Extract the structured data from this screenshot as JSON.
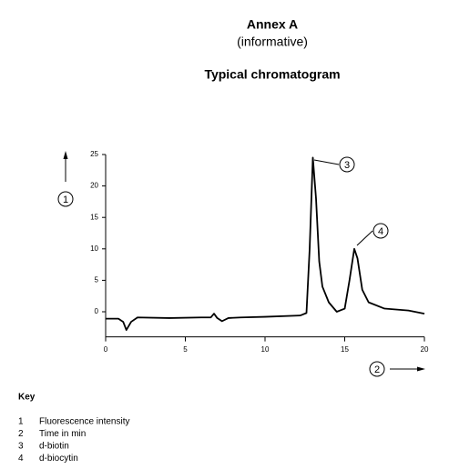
{
  "header": {
    "title": "Annex A",
    "subtitle": "(informative)",
    "caption": "Typical chromatogram"
  },
  "chart_data": {
    "type": "line",
    "x": [
      0,
      0.8,
      1.1,
      1.3,
      1.6,
      2,
      4,
      6,
      6.6,
      6.8,
      7.0,
      7.3,
      7.7,
      8.5,
      10,
      12.2,
      12.6,
      12.8,
      13.0,
      13.2,
      13.4,
      13.6,
      14.0,
      14.5,
      15.0,
      15.3,
      15.6,
      15.8,
      16.1,
      16.5,
      17.5,
      19,
      20
    ],
    "series": [
      {
        "color": "#000000",
        "values": [
          -1.1,
          -1.1,
          -1.6,
          -2.9,
          -1.6,
          -0.9,
          -1.0,
          -0.9,
          -0.9,
          -0.3,
          -1.0,
          -1.5,
          -1.0,
          -0.9,
          -0.8,
          -0.6,
          -0.2,
          10,
          24.5,
          18,
          8,
          4,
          1.5,
          0.0,
          0.5,
          5,
          10,
          8.5,
          3.5,
          1.5,
          0.5,
          0.2,
          -0.3
        ]
      }
    ],
    "xlim": [
      0,
      20
    ],
    "ylim": [
      -4,
      25
    ],
    "xticks": [
      0,
      5,
      10,
      15,
      20
    ],
    "yticks": [
      0,
      5,
      10,
      15,
      20,
      25
    ],
    "y_axis_marker": "1",
    "x_axis_marker": "2",
    "callouts": [
      "3",
      "4"
    ]
  },
  "key": {
    "title": "Key",
    "items": [
      {
        "number": "1",
        "text": "Fluorescence intensity"
      },
      {
        "number": "2",
        "text": "Time in min"
      },
      {
        "number": "3",
        "text": "d-biotin"
      },
      {
        "number": "4",
        "text": "d-biocytin"
      }
    ]
  }
}
